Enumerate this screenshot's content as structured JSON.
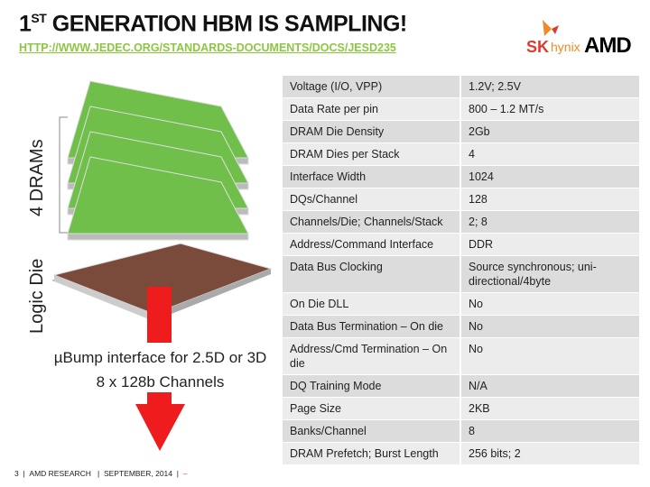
{
  "header": {
    "title_prefix": "1",
    "title_sup": "ST",
    "title_rest": " GENERATION HBM IS SAMPLING!",
    "link": "HTTP://WWW.JEDEC.ORG/STANDARDS-DOCUMENTS/DOCS/JESD235"
  },
  "logo": {
    "sk": "SK",
    "hynix": "hynix",
    "amd": "AMD"
  },
  "diagram": {
    "dram_label": "4 DRAMs",
    "logic_label": "Logic Die",
    "caption1": "µBump interface for 2.5D or 3D",
    "caption2": "8 x 128b Channels",
    "arrow_color": "#ee1c1c",
    "dram_color": "#6fbf4a",
    "logic_color": "#7a4a3a"
  },
  "table": [
    [
      "Voltage (I/O, VPP)",
      "1.2V; 2.5V"
    ],
    [
      "Data Rate per pin",
      "800 – 1.2 MT/s"
    ],
    [
      "DRAM Die Density",
      "2Gb"
    ],
    [
      "DRAM Dies per Stack",
      "4"
    ],
    [
      "Interface Width",
      "1024"
    ],
    [
      "DQs/Channel",
      "128"
    ],
    [
      "Channels/Die; Channels/Stack",
      "2; 8"
    ],
    [
      "Address/Command Interface",
      "DDR"
    ],
    [
      "Data Bus Clocking",
      "Source synchronous; uni-directional/4byte"
    ],
    [
      "On Die DLL",
      "No"
    ],
    [
      "Data Bus Termination – On die",
      "No"
    ],
    [
      "Address/Cmd Termination – On die",
      "No"
    ],
    [
      "DQ Training Mode",
      "N/A"
    ],
    [
      "Page Size",
      "2KB"
    ],
    [
      "Banks/Channel",
      "8"
    ],
    [
      "DRAM Prefetch; Burst Length",
      "256 bits; 2"
    ]
  ],
  "footer": {
    "page": "3",
    "org": "AMD RESEARCH",
    "date": "SEPTEMBER, 2014",
    "sep": "|",
    "dash": "–"
  }
}
